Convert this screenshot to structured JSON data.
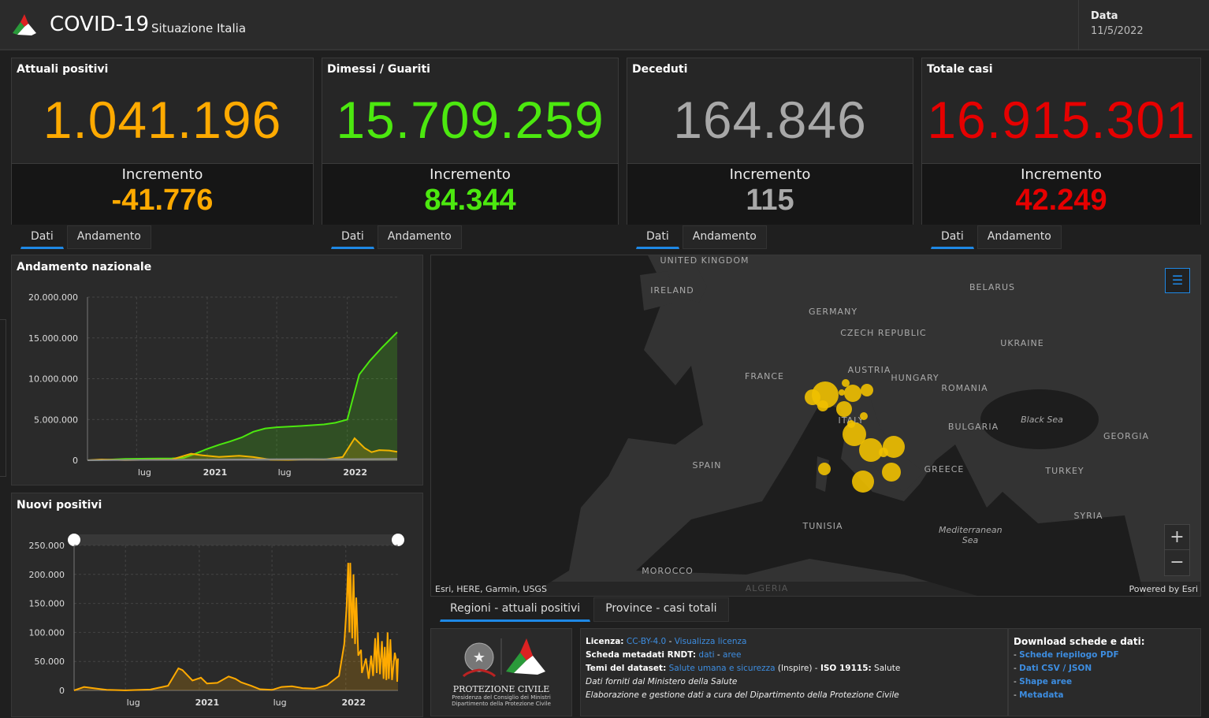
{
  "header": {
    "title": "COVID-19",
    "subtitle": "Situazione Italia",
    "date_label": "Data",
    "date_value": "11/5/2022",
    "logo": "protezione-civile-logo"
  },
  "cards": [
    {
      "label": "Attuali positivi",
      "value": "1.041.196",
      "increment_label": "Incremento",
      "increment": "-41.776",
      "color": "#ffaa00"
    },
    {
      "label": "Dimessi / Guariti",
      "value": "15.709.259",
      "increment_label": "Incremento",
      "increment": "84.344",
      "color": "#4ce80f"
    },
    {
      "label": "Deceduti",
      "value": "164.846",
      "increment_label": "Incremento",
      "increment": "115",
      "color": "#a8a8a8"
    },
    {
      "label": "Totale casi",
      "value": "16.915.301",
      "increment_label": "Incremento",
      "increment": "42.249",
      "color": "#e60000"
    }
  ],
  "card_tabs": [
    "Dati",
    "Andamento"
  ],
  "chart_data": [
    {
      "type": "area",
      "title": "Andamento nazionale",
      "ylim": [
        0,
        20000000
      ],
      "yticks": [
        "20.000.000",
        "15.000.000",
        "10.000.000",
        "5.000.000",
        "0"
      ],
      "xticks": [
        {
          "date": "2020-07-01",
          "label": "lug"
        },
        {
          "date": "2021-01-01",
          "label": "2021"
        },
        {
          "date": "2021-07-01",
          "label": "lug"
        },
        {
          "date": "2022-01-01",
          "label": "2022"
        }
      ],
      "xlim": [
        "2020-02-24",
        "2022-05-11"
      ],
      "grid": true,
      "series": [
        {
          "color": "#4ce80f",
          "points": [
            [
              "2020-02-24",
              0
            ],
            [
              "2020-04-01",
              40000
            ],
            [
              "2020-06-01",
              160000
            ],
            [
              "2020-08-01",
              200000
            ],
            [
              "2020-10-01",
              230000
            ],
            [
              "2020-11-01",
              300000
            ],
            [
              "2020-12-01",
              800000
            ],
            [
              "2021-01-01",
              1400000
            ],
            [
              "2021-02-01",
              1900000
            ],
            [
              "2021-03-01",
              2300000
            ],
            [
              "2021-04-01",
              2800000
            ],
            [
              "2021-05-01",
              3500000
            ],
            [
              "2021-06-01",
              3900000
            ],
            [
              "2021-07-01",
              4050000
            ],
            [
              "2021-09-01",
              4200000
            ],
            [
              "2021-11-01",
              4400000
            ],
            [
              "2021-12-01",
              4600000
            ],
            [
              "2022-01-01",
              5000000
            ],
            [
              "2022-01-15",
              7500000
            ],
            [
              "2022-02-01",
              10500000
            ],
            [
              "2022-03-01",
              12200000
            ],
            [
              "2022-04-01",
              13800000
            ],
            [
              "2022-05-11",
              15700000
            ]
          ]
        },
        {
          "color": "#f0b400",
          "points": [
            [
              "2020-02-24",
              0
            ],
            [
              "2020-04-01",
              100000
            ],
            [
              "2020-06-01",
              30000
            ],
            [
              "2020-10-01",
              100000
            ],
            [
              "2020-11-20",
              800000
            ],
            [
              "2020-12-20",
              600000
            ],
            [
              "2021-02-01",
              420000
            ],
            [
              "2021-03-25",
              560000
            ],
            [
              "2021-05-01",
              400000
            ],
            [
              "2021-06-15",
              80000
            ],
            [
              "2021-08-01",
              50000
            ],
            [
              "2021-09-15",
              130000
            ],
            [
              "2021-11-01",
              100000
            ],
            [
              "2021-12-20",
              400000
            ],
            [
              "2022-01-20",
              2700000
            ],
            [
              "2022-02-15",
              1500000
            ],
            [
              "2022-03-05",
              1000000
            ],
            [
              "2022-03-25",
              1250000
            ],
            [
              "2022-04-20",
              1200000
            ],
            [
              "2022-05-11",
              1040000
            ]
          ]
        },
        {
          "color": "#8a8a8a",
          "points": [
            [
              "2020-02-24",
              0
            ],
            [
              "2020-06-01",
              34000
            ],
            [
              "2021-01-01",
              75000
            ],
            [
              "2021-06-01",
              127000
            ],
            [
              "2022-01-01",
              138000
            ],
            [
              "2022-05-11",
              165000
            ]
          ]
        }
      ]
    },
    {
      "type": "area",
      "title": "Nuovi positivi",
      "ylim": [
        0,
        250000
      ],
      "yticks": [
        "250.000",
        "200.000",
        "150.000",
        "100.000",
        "50.000",
        "0"
      ],
      "xticks": [
        {
          "date": "2020-07-01",
          "label": "lug"
        },
        {
          "date": "2021-01-01",
          "label": "2021"
        },
        {
          "date": "2021-07-01",
          "label": "lug"
        },
        {
          "date": "2022-01-01",
          "label": "2022"
        }
      ],
      "xlim": [
        "2020-02-24",
        "2022-05-11"
      ],
      "grid": true,
      "series": [
        {
          "color": "#ffaa00",
          "points": [
            [
              "2020-02-24",
              0
            ],
            [
              "2020-03-20",
              6000
            ],
            [
              "2020-04-15",
              3500
            ],
            [
              "2020-05-15",
              1000
            ],
            [
              "2020-07-01",
              200
            ],
            [
              "2020-09-01",
              1500
            ],
            [
              "2020-10-15",
              8000
            ],
            [
              "2020-11-10",
              38000
            ],
            [
              "2020-11-20",
              35000
            ],
            [
              "2020-12-15",
              17000
            ],
            [
              "2021-01-05",
              22000
            ],
            [
              "2021-01-20",
              12000
            ],
            [
              "2021-02-15",
              13000
            ],
            [
              "2021-03-15",
              24000
            ],
            [
              "2021-04-01",
              20000
            ],
            [
              "2021-04-15",
              14000
            ],
            [
              "2021-05-10",
              8000
            ],
            [
              "2021-06-01",
              2000
            ],
            [
              "2021-07-01",
              1000
            ],
            [
              "2021-07-25",
              6000
            ],
            [
              "2021-08-20",
              7000
            ],
            [
              "2021-09-15",
              4000
            ],
            [
              "2021-10-15",
              3000
            ],
            [
              "2021-11-15",
              9000
            ],
            [
              "2021-12-15",
              25000
            ],
            [
              "2021-12-28",
              80000
            ],
            [
              "2022-01-03",
              145000
            ],
            [
              "2022-01-07",
              220000
            ],
            [
              "2022-01-10",
              100000
            ],
            [
              "2022-01-12",
              220000
            ],
            [
              "2022-01-17",
              90000
            ],
            [
              "2022-01-20",
              200000
            ],
            [
              "2022-01-24",
              80000
            ],
            [
              "2022-01-27",
              160000
            ],
            [
              "2022-02-01",
              60000
            ],
            [
              "2022-02-08",
              70000
            ],
            [
              "2022-02-10",
              30000
            ],
            [
              "2022-02-20",
              55000
            ],
            [
              "2022-02-27",
              20000
            ],
            [
              "2022-03-05",
              60000
            ],
            [
              "2022-03-10",
              25000
            ],
            [
              "2022-03-15",
              90000
            ],
            [
              "2022-03-19",
              30000
            ],
            [
              "2022-03-22",
              100000
            ],
            [
              "2022-03-27",
              28000
            ],
            [
              "2022-04-01",
              85000
            ],
            [
              "2022-04-05",
              20000
            ],
            [
              "2022-04-08",
              75000
            ],
            [
              "2022-04-12",
              18000
            ],
            [
              "2022-04-15",
              100000
            ],
            [
              "2022-04-18",
              20000
            ],
            [
              "2022-04-22",
              88000
            ],
            [
              "2022-04-26",
              18000
            ],
            [
              "2022-05-03",
              65000
            ],
            [
              "2022-05-07",
              50000
            ],
            [
              "2022-05-09",
              15000
            ],
            [
              "2022-05-11",
              55000
            ]
          ]
        }
      ]
    }
  ],
  "map": {
    "labels": [
      "UNITED KINGDOM",
      "IRELAND",
      "GERMANY",
      "CZECH REPUBLIC",
      "AUSTRIA",
      "HUNGARY",
      "ROMANIA",
      "FRANCE",
      "BELARUS",
      "UKRAINE",
      "Black Sea",
      "BULGARIA",
      "GEORGIA",
      "SPAIN",
      "ITALY",
      "GREECE",
      "TURKEY",
      "TUNISIA",
      "Mediterranean Sea",
      "SYRIA",
      "MOROCCO",
      "ALGERIA"
    ],
    "attribution": "Esri, HERE, Garmin, USGS",
    "powered": "Powered by Esri",
    "bubble_color": "#f0c000",
    "zoom_in": "+",
    "zoom_out": "−"
  },
  "map_tabs": [
    "Regioni - attuali positivi",
    "Province - casi totali"
  ],
  "logo_panel": {
    "org": "PROTEZIONE CIVILE",
    "line1": "Presidenza del Consiglio dei Ministri",
    "line2": "Dipartimento della Protezione Civile"
  },
  "info": {
    "licenza_label": "Licenza:",
    "licenza_link": "CC-BY-4.0",
    "licenza_sep": " - ",
    "licenza_view": "Visualizza licenza",
    "rndt_label": "Scheda metadati RNDT:",
    "rndt_dati": "dati",
    "rndt_sep": " - ",
    "rndt_aree": "aree",
    "temi_label": "Temi del dataset:",
    "temi_link": "Salute umana e sicurezza",
    "temi_rest": " (Inspire) - ",
    "iso_label": "ISO 19115:",
    "iso_value": " Salute",
    "line4": "Dati forniti dal Ministero della Salute",
    "line5": "Elaborazione e gestione dati a cura del Dipartimento della Protezione Civile"
  },
  "download": {
    "title": "Download schede e dati:",
    "links": [
      "Schede riepilogo PDF",
      "Dati CSV / JSON",
      "Shape aree",
      "Metadata"
    ]
  }
}
